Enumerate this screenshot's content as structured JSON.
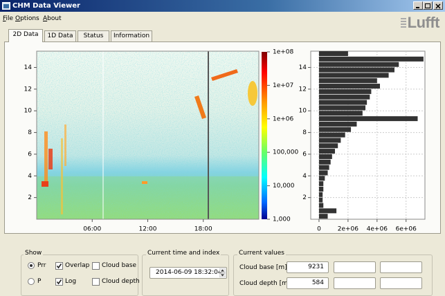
{
  "window": {
    "title": "CHM Data Viewer",
    "logo": "Lufft"
  },
  "menu": [
    "File",
    "Options",
    "About"
  ],
  "tabs": [
    "2D Data",
    "1D Data",
    "Status",
    "Information"
  ],
  "heatmap": {
    "xlim": [
      0,
      24
    ],
    "xticks": [
      {
        "value": 6,
        "label": "06:00"
      },
      {
        "value": 12,
        "label": "12:00"
      },
      {
        "value": 18,
        "label": "18:00"
      }
    ],
    "ylim": [
      0,
      15.5
    ],
    "yticks": [
      2,
      4,
      6,
      8,
      10,
      12,
      14
    ],
    "colorbar": {
      "log": true,
      "lim": [
        1000,
        100000000
      ],
      "ticks": [
        {
          "value": 100000000,
          "label": "1e+08"
        },
        {
          "value": 10000000,
          "label": "1e+07"
        },
        {
          "value": 1000000,
          "label": "1e+06"
        },
        {
          "value": 100000,
          "label": "100,000"
        },
        {
          "value": 10000,
          "label": "10,000"
        },
        {
          "value": 1000,
          "label": "1,000"
        }
      ]
    }
  },
  "profile": {
    "type": "bar",
    "orientation": "horizontal",
    "color": "#333333",
    "grid": true,
    "heights": [
      0.25,
      0.75,
      1.25,
      1.75,
      2.25,
      2.75,
      3.25,
      3.75,
      4.25,
      4.75,
      5.25,
      5.75,
      6.25,
      6.75,
      7.25,
      7.75,
      8.25,
      8.75,
      9.25,
      9.75,
      10.25,
      10.75,
      11.25,
      11.75,
      12.25,
      12.75,
      13.25,
      13.75,
      14.25,
      14.75,
      15.25
    ],
    "values": [
      600000,
      1200000,
      300000,
      250000,
      250000,
      300000,
      300000,
      400000,
      600000,
      700000,
      800000,
      900000,
      1100000,
      1300000,
      1500000,
      1800000,
      2200000,
      2600000,
      6800000,
      3000000,
      3200000,
      3300000,
      3500000,
      3600000,
      4200000,
      4000000,
      4800000,
      5200000,
      5500000,
      7200000,
      2000000
    ],
    "xlim": [
      -570000,
      7300000
    ],
    "xticks": [
      0,
      {
        "value": 2000000,
        "label": "2e+06"
      },
      {
        "value": 4000000,
        "label": "4e+06"
      },
      {
        "value": 6000000,
        "label": "6e+06"
      }
    ],
    "ylim": [
      0,
      15.5
    ],
    "yticks": [
      2,
      4,
      6,
      8,
      10,
      12,
      14
    ]
  },
  "controls": {
    "show": {
      "title": "Show",
      "radios": [
        {
          "label": "Prr",
          "selected": true
        },
        {
          "label": "P",
          "selected": false
        }
      ],
      "checkboxes": [
        {
          "label": "Overlap",
          "checked": true
        },
        {
          "label": "Log",
          "checked": true
        },
        {
          "label": "Cloud base",
          "checked": false
        },
        {
          "label": "Cloud depth",
          "checked": false
        }
      ]
    },
    "time": {
      "title": "Current time and index",
      "value": "2014-06-09 18:32:04"
    },
    "values": {
      "title": "Current values",
      "rows": [
        {
          "label": "Cloud base [m]",
          "value": 9231
        },
        {
          "label": "Cloud depth [m]",
          "value": 584
        }
      ]
    }
  }
}
